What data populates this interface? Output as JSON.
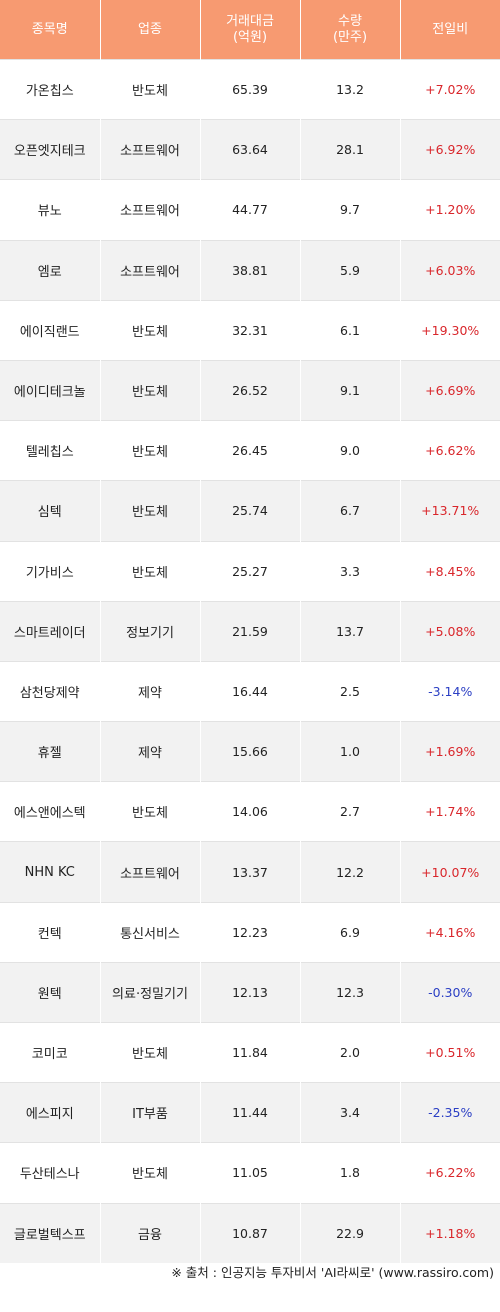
{
  "headers": [
    "종목명",
    "업종",
    "거래대금\n(억원)",
    "수량\n(만주)",
    "전일비"
  ],
  "colors": {
    "header_bg": "#f79a71",
    "up": "#d9262b",
    "down": "#2b3fc4"
  },
  "rows": [
    {
      "name": "가온칩스",
      "sector": "반도체",
      "amount": "65.39",
      "volume": "13.2",
      "change": "+7.02%"
    },
    {
      "name": "오픈엣지테크",
      "sector": "소프트웨어",
      "amount": "63.64",
      "volume": "28.1",
      "change": "+6.92%"
    },
    {
      "name": "뷰노",
      "sector": "소프트웨어",
      "amount": "44.77",
      "volume": "9.7",
      "change": "+1.20%"
    },
    {
      "name": "엠로",
      "sector": "소프트웨어",
      "amount": "38.81",
      "volume": "5.9",
      "change": "+6.03%"
    },
    {
      "name": "에이직랜드",
      "sector": "반도체",
      "amount": "32.31",
      "volume": "6.1",
      "change": "+19.30%"
    },
    {
      "name": "에이디테크놀",
      "sector": "반도체",
      "amount": "26.52",
      "volume": "9.1",
      "change": "+6.69%"
    },
    {
      "name": "텔레칩스",
      "sector": "반도체",
      "amount": "26.45",
      "volume": "9.0",
      "change": "+6.62%"
    },
    {
      "name": "심텍",
      "sector": "반도체",
      "amount": "25.74",
      "volume": "6.7",
      "change": "+13.71%"
    },
    {
      "name": "기가비스",
      "sector": "반도체",
      "amount": "25.27",
      "volume": "3.3",
      "change": "+8.45%"
    },
    {
      "name": "스마트레이더",
      "sector": "정보기기",
      "amount": "21.59",
      "volume": "13.7",
      "change": "+5.08%"
    },
    {
      "name": "삼천당제약",
      "sector": "제약",
      "amount": "16.44",
      "volume": "2.5",
      "change": "-3.14%"
    },
    {
      "name": "휴젤",
      "sector": "제약",
      "amount": "15.66",
      "volume": "1.0",
      "change": "+1.69%"
    },
    {
      "name": "에스앤에스텍",
      "sector": "반도체",
      "amount": "14.06",
      "volume": "2.7",
      "change": "+1.74%"
    },
    {
      "name": "NHN KC",
      "sector": "소프트웨어",
      "amount": "13.37",
      "volume": "12.2",
      "change": "+10.07%"
    },
    {
      "name": "컨텍",
      "sector": "통신서비스",
      "amount": "12.23",
      "volume": "6.9",
      "change": "+4.16%"
    },
    {
      "name": "원텍",
      "sector": "의료·정밀기기",
      "amount": "12.13",
      "volume": "12.3",
      "change": "-0.30%"
    },
    {
      "name": "코미코",
      "sector": "반도체",
      "amount": "11.84",
      "volume": "2.0",
      "change": "+0.51%"
    },
    {
      "name": "에스피지",
      "sector": "IT부품",
      "amount": "11.44",
      "volume": "3.4",
      "change": "-2.35%"
    },
    {
      "name": "두산테스나",
      "sector": "반도체",
      "amount": "11.05",
      "volume": "1.8",
      "change": "+6.22%"
    },
    {
      "name": "글로벌텍스프",
      "sector": "금융",
      "amount": "10.87",
      "volume": "22.9",
      "change": "+1.18%"
    }
  ],
  "footer": "※ 출처 : 인공지능 투자비서 'AI라씨로' (www.rassiro.com)"
}
